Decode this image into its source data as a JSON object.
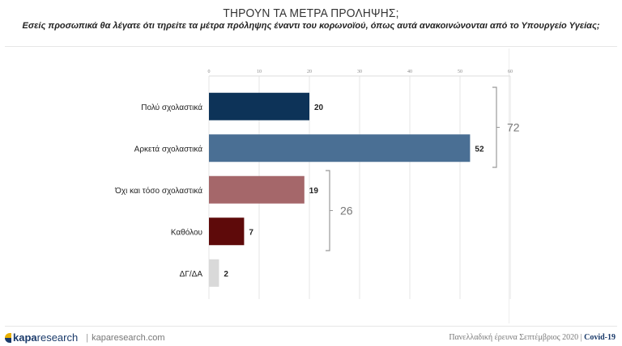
{
  "header": {
    "title": "ΤΗΡΟΥΝ ΤΑ ΜΕΤΡΑ ΠΡΟΛΗΨΗΣ;",
    "subtitle": "Εσείς προσωπικά θα λέγατε ότι τηρείτε τα μέτρα πρόληψης έναντι του κορωνοϊού, όπως αυτά ανακοινώνονται από το Υπουργείο Υγείας;"
  },
  "chart_data": {
    "type": "bar",
    "orientation": "horizontal",
    "title": "ΤΗΡΟΥΝ ΤΑ ΜΕΤΡΑ ΠΡΟΛΗΨΗΣ;",
    "categories": [
      "Πολύ σχολαστικά",
      "Αρκετά σχολαστικά",
      "Όχι και τόσο σχολαστικά",
      "Καθόλου",
      "ΔΓ/ΔΑ"
    ],
    "values": [
      20,
      52,
      19,
      7,
      2
    ],
    "colors": [
      "#0d3358",
      "#4a6f94",
      "#a5676a",
      "#5e0a0a",
      "#d9d9d9"
    ],
    "xlabel": "",
    "ylabel": "",
    "xlim": [
      0,
      60
    ],
    "xticks": [
      0,
      10,
      20,
      30,
      40,
      50,
      60
    ],
    "grid": true,
    "legend": "none",
    "groups": [
      {
        "label": "72",
        "from": 0,
        "to": 1
      },
      {
        "label": "26",
        "from": 2,
        "to": 3
      }
    ]
  },
  "footer": {
    "brand_bold": "kapa",
    "brand_light": "research",
    "separator": "|",
    "website": "kaparesearch.com",
    "survey": "Πανελλαδική έρευνα Σεπτέμβριος 2020 |",
    "tag": "Covid-19"
  }
}
